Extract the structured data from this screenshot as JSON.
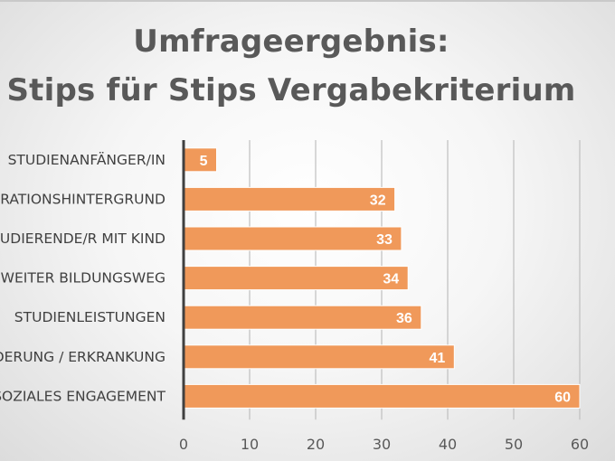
{
  "chart_data": {
    "type": "bar",
    "orientation": "horizontal",
    "title_lines": [
      "Umfrageergebnis:",
      "Stips für Stips Vergabekriterium"
    ],
    "categories": [
      "STUDIENANFÄNGER/IN",
      "MIGRATIONSHINTERGRUND",
      "STUDIERENDE/R MIT KIND",
      "ZWEITER BILDUNGSWEG",
      "STUDIENLEISTUNGEN",
      "BEHINDERUNG / ERKRANKUNG",
      "SOZIALES ENGAGEMENT"
    ],
    "values": [
      5,
      32,
      33,
      34,
      36,
      41,
      60
    ],
    "xlim": [
      0,
      60
    ],
    "xticks": [
      0,
      10,
      20,
      30,
      40,
      50,
      60
    ],
    "xlabel": "",
    "ylabel": "",
    "grid": true,
    "legend": "none",
    "bar_color": "#F0995A"
  }
}
